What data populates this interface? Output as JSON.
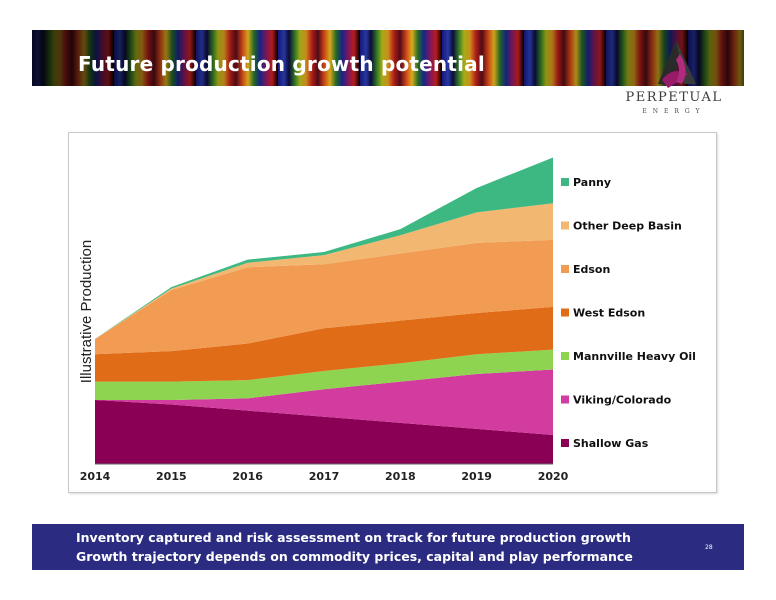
{
  "slide": {
    "title": "Future production growth potential",
    "footer_line_1": "Inventory captured and risk assessment on track for future production growth",
    "footer_line_2": "Growth trajectory depends on commodity prices, capital and play performance",
    "page_number": "28"
  },
  "logo": {
    "name": "PERPETUAL",
    "subtitle": "ENERGY",
    "colors": {
      "mark_dark": "#2a2a2a",
      "mark_accent": "#9a1a6a"
    }
  },
  "colors": {
    "header_band": "#1a1a3a",
    "footer_band": "#2b2b82",
    "text_on_dark": "#ffffff"
  },
  "chart_data": {
    "type": "area",
    "stacked": true,
    "title": "",
    "xlabel": "",
    "ylabel": "Illustrative Production",
    "y_axis_visible": false,
    "grid": false,
    "ylim": [
      0,
      100
    ],
    "x": [
      "2014",
      "2015",
      "2016",
      "2017",
      "2018",
      "2019",
      "2020"
    ],
    "legend_position": "right",
    "legend_order": [
      "Panny",
      "Other Deep Basin",
      "Edson",
      "West Edson",
      "Mannville Heavy Oil",
      "Viking/Colorado",
      "Shallow Gas"
    ],
    "series": [
      {
        "name": "Shallow Gas",
        "color": "#8a0055",
        "values": [
          21,
          19.5,
          17.5,
          15.5,
          13.5,
          11.5,
          9.5
        ]
      },
      {
        "name": "Viking/Colorado",
        "color": "#d23c9e",
        "values": [
          0,
          1.5,
          4,
          9,
          13.5,
          18,
          21.5
        ]
      },
      {
        "name": "Mannville Heavy Oil",
        "color": "#8fd451",
        "values": [
          6,
          6,
          6,
          6,
          6,
          6.5,
          6.5
        ]
      },
      {
        "name": "West Edson",
        "color": "#e06c17",
        "values": [
          9,
          10,
          12,
          14,
          14,
          13.5,
          14
        ]
      },
      {
        "name": "Edson",
        "color": "#f29b52",
        "values": [
          5,
          20,
          25,
          21,
          22,
          23,
          22
        ]
      },
      {
        "name": "Other Deep Basin",
        "color": "#f2b872",
        "values": [
          0,
          0.5,
          1.5,
          3,
          6,
          10,
          12
        ]
      },
      {
        "name": "Panny",
        "color": "#3db883",
        "values": [
          0,
          0.5,
          1,
          1,
          2,
          8,
          15
        ]
      }
    ]
  }
}
